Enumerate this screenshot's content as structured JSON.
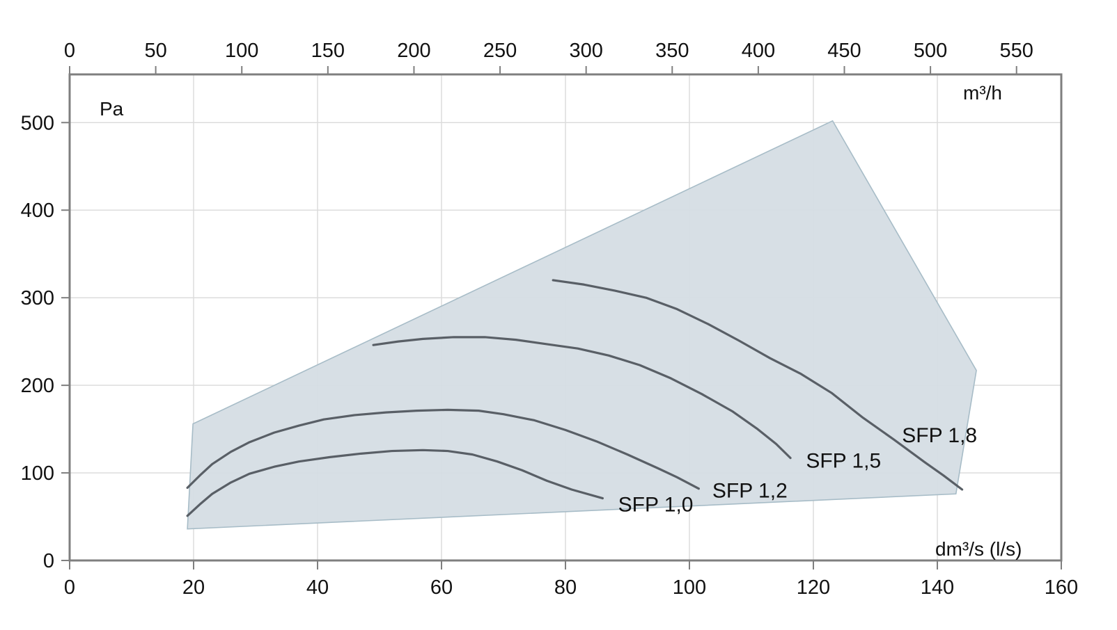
{
  "chart_data": {
    "type": "line",
    "description": "Fan pressure vs airflow operating envelope with SFP curves",
    "axes": {
      "left": {
        "unit": "Pa",
        "min": 0,
        "max": 555,
        "ticks": [
          0,
          100,
          200,
          300,
          400,
          500
        ]
      },
      "bottom": {
        "unit": "dm³/s (l/s)",
        "min": 0,
        "max": 160,
        "ticks": [
          0,
          20,
          40,
          60,
          80,
          100,
          120,
          140,
          160
        ]
      },
      "top": {
        "unit": "m³/h",
        "min": 0,
        "max": 576,
        "ticks": [
          0,
          50,
          100,
          150,
          200,
          250,
          300,
          350,
          400,
          450,
          500,
          550
        ],
        "lps_per_unit": 0.2777778
      }
    },
    "grid": {
      "vertical_at_lps": [
        20,
        40,
        60,
        80,
        100,
        120,
        140
      ],
      "horizontal_at_pa": [
        100,
        200,
        300,
        400,
        500
      ]
    },
    "envelope_lps_pa": [
      [
        19,
        36
      ],
      [
        19.9,
        156
      ],
      [
        123.1,
        502
      ],
      [
        146.3,
        217
      ],
      [
        143,
        76
      ]
    ],
    "series": [
      {
        "name": "SFP 1,0",
        "label_at_lps_pa": [
          88.5,
          56
        ],
        "points_lps_pa": [
          [
            19,
            51
          ],
          [
            21,
            64
          ],
          [
            23,
            76
          ],
          [
            26,
            89
          ],
          [
            29,
            99
          ],
          [
            33,
            107
          ],
          [
            37,
            113
          ],
          [
            42,
            118
          ],
          [
            47,
            122
          ],
          [
            52,
            125
          ],
          [
            57,
            126
          ],
          [
            61,
            125
          ],
          [
            65,
            121
          ],
          [
            69,
            113
          ],
          [
            73,
            103
          ],
          [
            77,
            91
          ],
          [
            81,
            81
          ],
          [
            86,
            71
          ]
        ]
      },
      {
        "name": "SFP 1,2",
        "label_at_lps_pa": [
          103.7,
          72
        ],
        "points_lps_pa": [
          [
            19,
            83
          ],
          [
            21,
            97
          ],
          [
            23,
            110
          ],
          [
            26,
            124
          ],
          [
            29,
            135
          ],
          [
            33,
            146
          ],
          [
            37,
            154
          ],
          [
            41,
            161
          ],
          [
            46,
            166
          ],
          [
            51,
            169
          ],
          [
            56,
            171
          ],
          [
            61,
            172
          ],
          [
            66,
            171
          ],
          [
            70,
            167
          ],
          [
            75,
            160
          ],
          [
            80,
            149
          ],
          [
            85,
            136
          ],
          [
            90,
            121
          ],
          [
            95,
            105
          ],
          [
            98,
            95
          ],
          [
            101.5,
            82
          ]
        ]
      },
      {
        "name": "SFP 1,5",
        "label_at_lps_pa": [
          118.8,
          106
        ],
        "points_lps_pa": [
          [
            49,
            246
          ],
          [
            53,
            250
          ],
          [
            57,
            253
          ],
          [
            62,
            255
          ],
          [
            67,
            255
          ],
          [
            72,
            252
          ],
          [
            77,
            247
          ],
          [
            82,
            242
          ],
          [
            87,
            234
          ],
          [
            92,
            223
          ],
          [
            97,
            208
          ],
          [
            102,
            190
          ],
          [
            107,
            170
          ],
          [
            111,
            150
          ],
          [
            114,
            133
          ],
          [
            116.3,
            117
          ]
        ]
      },
      {
        "name": "SFP 1,8",
        "label_at_lps_pa": [
          134.3,
          135
        ],
        "points_lps_pa": [
          [
            78,
            320
          ],
          [
            83,
            315
          ],
          [
            88,
            308
          ],
          [
            93,
            300
          ],
          [
            98,
            287
          ],
          [
            103,
            270
          ],
          [
            108,
            251
          ],
          [
            113,
            231
          ],
          [
            118,
            213
          ],
          [
            123,
            191
          ],
          [
            128,
            163
          ],
          [
            133,
            138
          ],
          [
            138,
            112
          ],
          [
            141,
            97
          ],
          [
            144,
            81
          ]
        ]
      }
    ],
    "colors": {
      "envelope_fill": "#d5dde4",
      "envelope_stroke": "#a7bcc7",
      "curve": "#595f66",
      "grid": "#dadada",
      "border": "#7f7f7f",
      "tick": "#7f7f7f",
      "text": "#111111",
      "background": "#ffffff"
    }
  }
}
